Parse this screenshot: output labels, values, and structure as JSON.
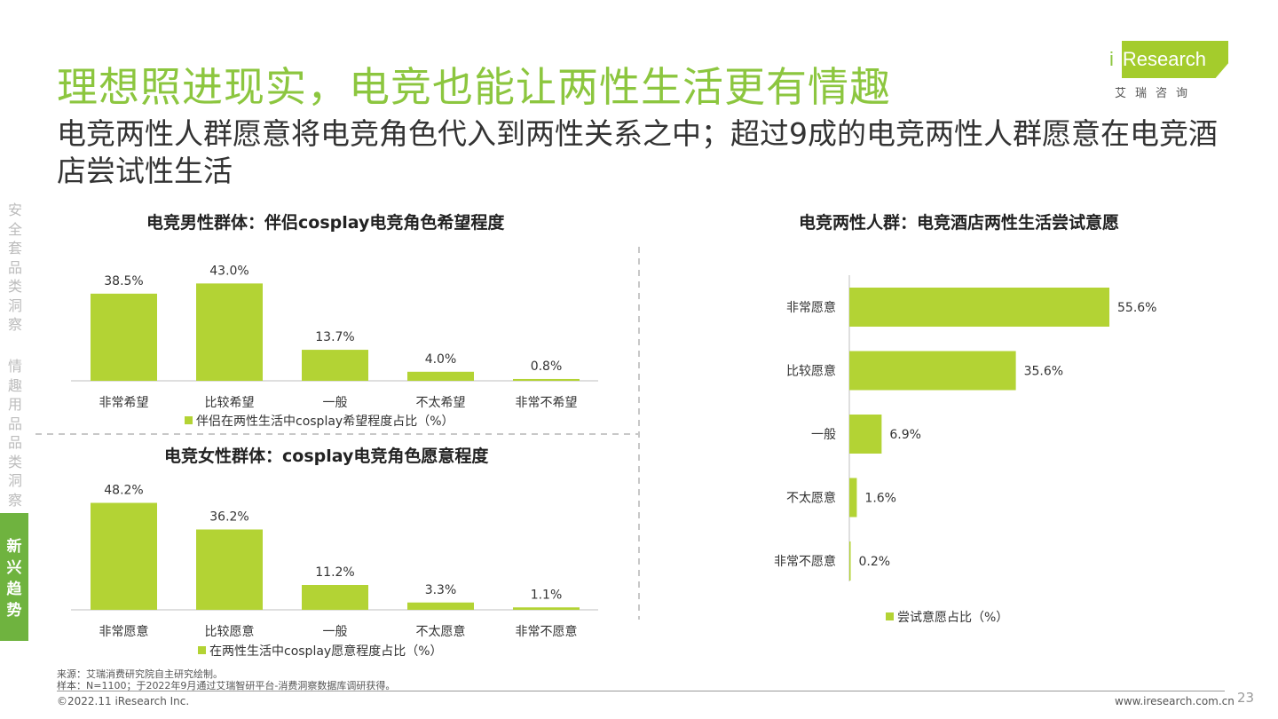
{
  "header": {
    "title": "理想照进现实，电竞也能让两性生活更有情趣",
    "subtitle": "电竞两性人群愿意将电竞角色代入到两性关系之中；超过9成的电竞两性人群愿意在电竞酒店尝试性生活"
  },
  "logo": {
    "text_i": "i",
    "text_rest": "Research",
    "sub": "艾瑞咨询"
  },
  "sidebar": {
    "items": [
      {
        "label": "安全套品类洞察",
        "active": false
      },
      {
        "label": "情趣用品品类洞察",
        "active": false
      },
      {
        "label": "新兴趋势",
        "active": true
      }
    ]
  },
  "colors": {
    "accent": "#8cc63f",
    "bar": "#b3d334",
    "active_tab": "#6fb33f"
  },
  "chart_data": [
    {
      "type": "bar",
      "title": "电竞男性群体：伴侣cosplay电竞角色希望程度",
      "categories": [
        "非常希望",
        "比较希望",
        "一般",
        "不太希望",
        "非常不希望"
      ],
      "series": [
        {
          "name": "伴侣在两性生活中cosplay希望程度占比（%）",
          "values": [
            38.5,
            43.0,
            13.7,
            4.0,
            0.8
          ]
        }
      ],
      "value_labels": [
        "38.5%",
        "43.0%",
        "13.7%",
        "4.0%",
        "0.8%"
      ],
      "legend_position": "bottom"
    },
    {
      "type": "bar",
      "title": "电竞女性群体：cosplay电竞角色愿意程度",
      "categories": [
        "非常愿意",
        "比较愿意",
        "一般",
        "不太愿意",
        "非常不愿意"
      ],
      "series": [
        {
          "name": "在两性生活中cosplay愿意程度占比（%）",
          "values": [
            48.2,
            36.2,
            11.2,
            3.3,
            1.1
          ]
        }
      ],
      "value_labels": [
        "48.2%",
        "36.2%",
        "11.2%",
        "3.3%",
        "1.1%"
      ],
      "legend_position": "bottom"
    },
    {
      "type": "bar",
      "orientation": "horizontal",
      "title": "电竞两性人群：电竞酒店两性生活尝试意愿",
      "categories": [
        "非常愿意",
        "比较愿意",
        "一般",
        "不太愿意",
        "非常不愿意"
      ],
      "series": [
        {
          "name": "尝试意愿占比（%）",
          "values": [
            55.6,
            35.6,
            6.9,
            1.6,
            0.2
          ]
        }
      ],
      "value_labels": [
        "55.6%",
        "35.6%",
        "6.9%",
        "1.6%",
        "0.2%"
      ],
      "legend_position": "bottom"
    }
  ],
  "footer": {
    "source": "来源：艾瑞消费研究院自主研究绘制。",
    "sample": "样本：N=1100；于2022年9月通过艾瑞智研平台-消费洞察数据库调研获得。",
    "copyright": "©2022.11 iResearch Inc.",
    "url": "www.iresearch.com.cn",
    "page_number": "23"
  }
}
